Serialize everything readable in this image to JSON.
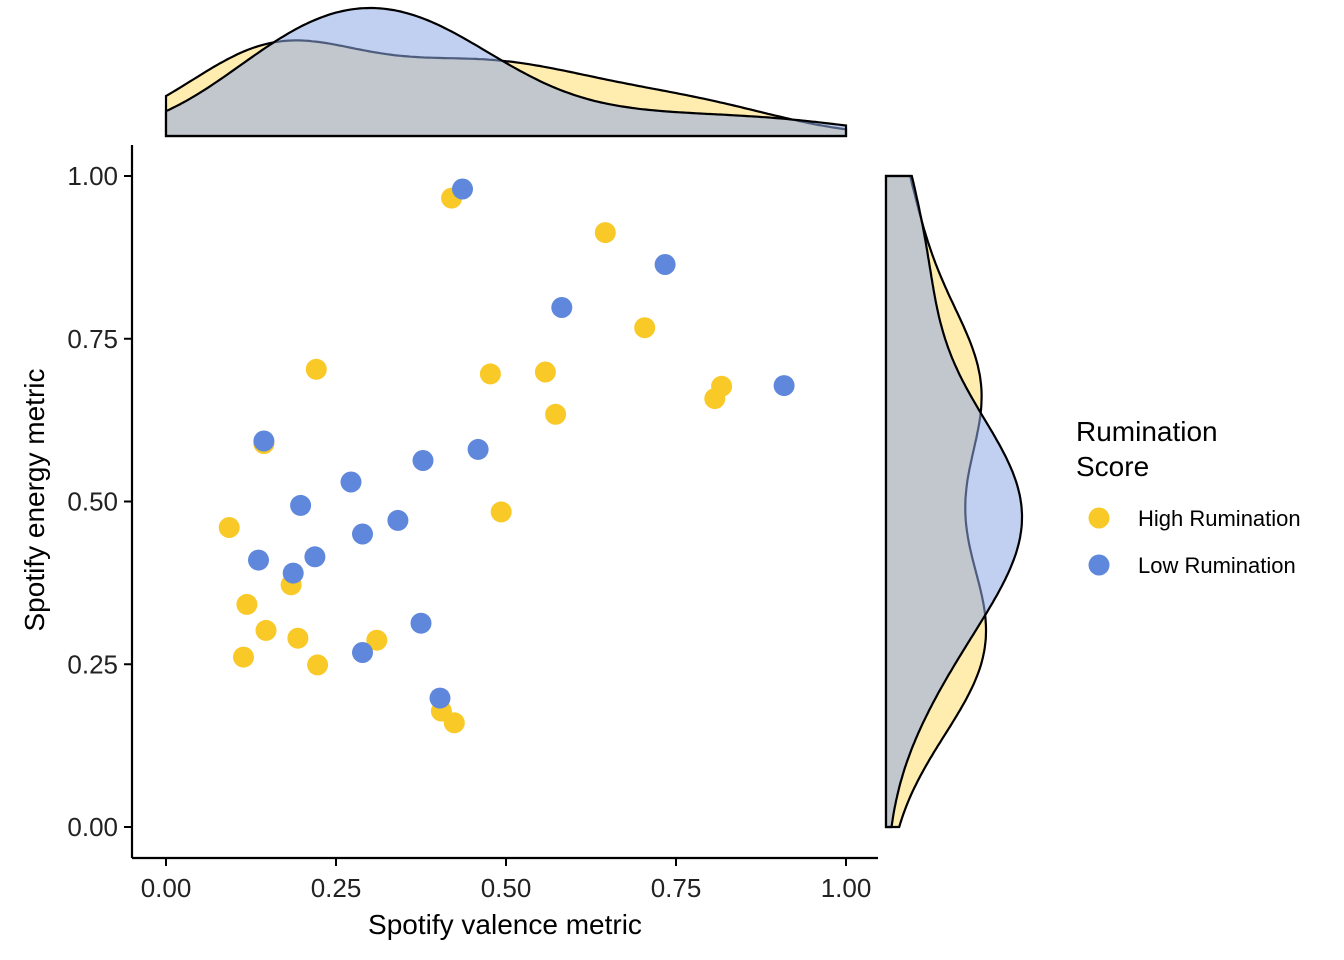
{
  "chart_data": {
    "type": "scatter",
    "xlabel": "Spotify valence metric",
    "ylabel": "Spotify energy metric",
    "xlim": [
      -0.05,
      1.05
    ],
    "ylim": [
      -0.05,
      1.05
    ],
    "x_ticks": [
      "0.00",
      "0.25",
      "0.50",
      "0.75",
      "1.00"
    ],
    "y_ticks": [
      "0.00",
      "0.25",
      "0.50",
      "0.75",
      "1.00"
    ],
    "grid": false,
    "legend": {
      "title_lines": [
        "Rumination",
        "Score"
      ],
      "placement": "right"
    },
    "marginals": {
      "top": "density of valence by group",
      "right": "density of energy by group"
    },
    "series": [
      {
        "name": "High Rumination",
        "color": "#F9C928",
        "fill": "#FFDD6E",
        "points": [
          [
            0.42,
            0.966
          ],
          [
            0.646,
            0.913
          ],
          [
            0.704,
            0.767
          ],
          [
            0.221,
            0.703
          ],
          [
            0.477,
            0.696
          ],
          [
            0.558,
            0.699
          ],
          [
            0.817,
            0.677
          ],
          [
            0.807,
            0.658
          ],
          [
            0.573,
            0.634
          ],
          [
            0.144,
            0.589
          ],
          [
            0.493,
            0.484
          ],
          [
            0.093,
            0.46
          ],
          [
            0.184,
            0.372
          ],
          [
            0.119,
            0.342
          ],
          [
            0.147,
            0.302
          ],
          [
            0.194,
            0.29
          ],
          [
            0.31,
            0.287
          ],
          [
            0.114,
            0.261
          ],
          [
            0.223,
            0.249
          ],
          [
            0.405,
            0.178
          ],
          [
            0.424,
            0.16
          ]
        ]
      },
      {
        "name": "Low Rumination",
        "color": "#5F87DB",
        "fill": "#8EA9E6",
        "points": [
          [
            0.436,
            0.98
          ],
          [
            0.734,
            0.864
          ],
          [
            0.582,
            0.798
          ],
          [
            0.909,
            0.678
          ],
          [
            0.144,
            0.593
          ],
          [
            0.459,
            0.58
          ],
          [
            0.378,
            0.563
          ],
          [
            0.272,
            0.53
          ],
          [
            0.198,
            0.494
          ],
          [
            0.341,
            0.471
          ],
          [
            0.289,
            0.45
          ],
          [
            0.219,
            0.415
          ],
          [
            0.136,
            0.41
          ],
          [
            0.187,
            0.39
          ],
          [
            0.375,
            0.313
          ],
          [
            0.289,
            0.268
          ],
          [
            0.403,
            0.198
          ]
        ]
      }
    ]
  }
}
